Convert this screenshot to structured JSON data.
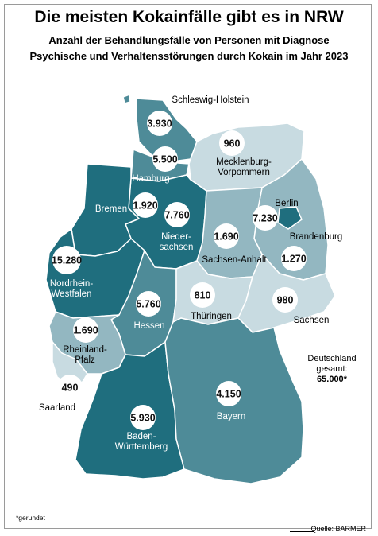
{
  "header": {
    "title": "Die meisten Kokainfälle gibt es in NRW",
    "subtitle_line1": "Anzahl der Behandlungsfälle von Personen mit Diagnose",
    "subtitle_line2": "Psychische und Verhaltensstörungen durch Kokain im Jahr 2023"
  },
  "colors": {
    "dark": "#1f6e7e",
    "mid": "#4e8b98",
    "light": "#93b7c1",
    "pale": "#c8dbe1",
    "label_white": "#ffffff"
  },
  "regions": [
    {
      "id": "schleswig-holstein",
      "name": "Schleswig-Holstein",
      "value": "3.930",
      "shade": "mid"
    },
    {
      "id": "hamburg",
      "name": "Hamburg",
      "value": "5.500",
      "shade": "mid"
    },
    {
      "id": "mecklenburg-vorpommern",
      "name_line1": "Mecklenburg-",
      "name_line2": "Vorpommern",
      "value": "960",
      "shade": "pale"
    },
    {
      "id": "bremen",
      "name": "Bremen",
      "value": "1.920",
      "shade": "dark"
    },
    {
      "id": "niedersachsen",
      "name_line1": "Nieder-",
      "name_line2": "sachsen",
      "value": "7.760",
      "shade": "dark"
    },
    {
      "id": "berlin",
      "name": "Berlin",
      "value": "7.230",
      "shade": "dark"
    },
    {
      "id": "brandenburg",
      "name": "Brandenburg",
      "value": "1.270",
      "shade": "light"
    },
    {
      "id": "sachsen-anhalt",
      "name": "Sachsen-Anhalt",
      "value": "1.690",
      "shade": "light"
    },
    {
      "id": "nordrhein-westfalen",
      "name_line1": "Nordrhein-",
      "name_line2": "Westfalen",
      "value": "15.280",
      "shade": "dark"
    },
    {
      "id": "hessen",
      "name": "Hessen",
      "value": "5.760",
      "shade": "mid"
    },
    {
      "id": "thueringen",
      "name": "Thüringen",
      "value": "810",
      "shade": "pale"
    },
    {
      "id": "sachsen",
      "name": "Sachsen",
      "value": "980",
      "shade": "pale"
    },
    {
      "id": "rheinland-pfalz",
      "name_line1": "Rheinland-",
      "name_line2": "Pfalz",
      "value": "1.690",
      "shade": "light"
    },
    {
      "id": "saarland",
      "name": "Saarland",
      "value": "490",
      "shade": "pale"
    },
    {
      "id": "baden-wuerttemberg",
      "name_line1": "Baden-",
      "name_line2": "Württemberg",
      "value": "5.930",
      "shade": "dark"
    },
    {
      "id": "bayern",
      "name": "Bayern",
      "value": "4.150",
      "shade": "mid"
    }
  ],
  "total": {
    "label_line1": "Deutschland",
    "label_line2": "gesamt:",
    "value": "65.000*"
  },
  "footnote": "*gerundet",
  "source": "Quelle: BARMER"
}
